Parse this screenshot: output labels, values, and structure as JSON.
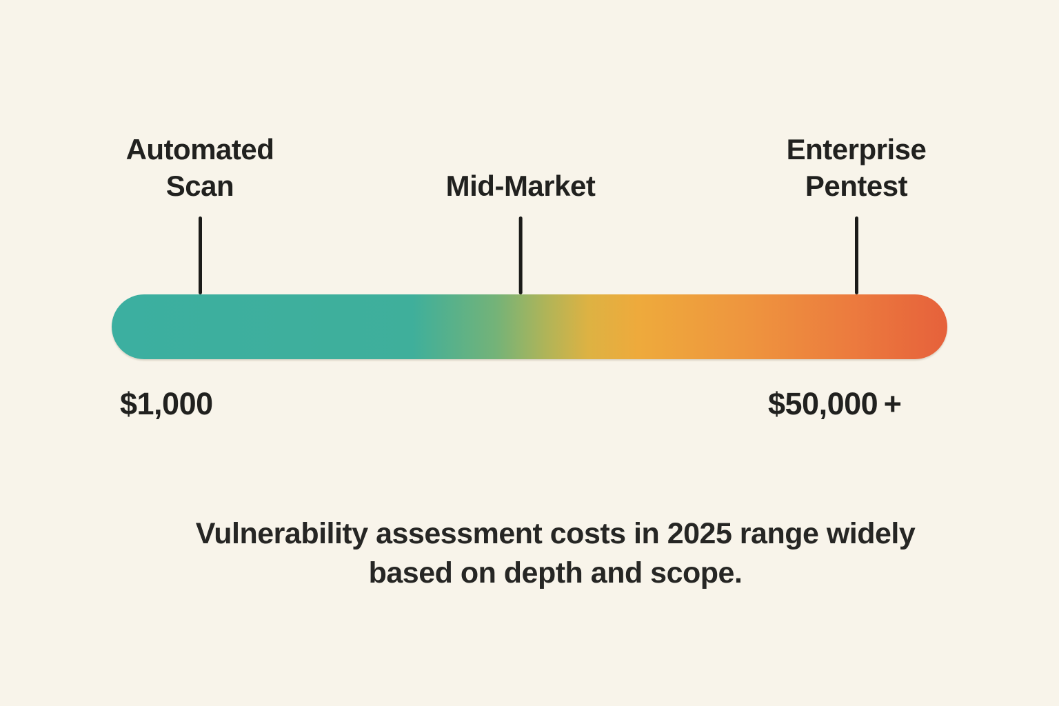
{
  "page": {
    "background": "#F8F4EA",
    "text_color": "#21211F",
    "tick_color": "#1B1B19"
  },
  "chart_data": {
    "type": "bar",
    "subtype": "gradient-cost-scale",
    "orientation": "horizontal",
    "title": "",
    "caption": "Vulnerability assessment costs in 2025 range widely based on depth and scope.",
    "caption_lines": [
      "Vulnerability assessment costs in 2025 range widely",
      "based on depth and scope."
    ],
    "min_label": "$1,000",
    "max_label": "$50,000 +",
    "min_value": 1000,
    "max_value": 50000,
    "max_open_ended": true,
    "legend": "none",
    "grid": false,
    "markers": [
      {
        "label": "Automated Scan",
        "position_pct": 10.6,
        "value_hint": 1000
      },
      {
        "label": "Mid-Market",
        "position_pct": 48.9
      },
      {
        "label": "Enterprise Pentest",
        "position_pct": 89.2,
        "value_hint": 50000
      }
    ],
    "gradient_stops": [
      {
        "pct": 0,
        "color": "#3CAFA0"
      },
      {
        "pct": 36,
        "color": "#3FAF9B"
      },
      {
        "pct": 46,
        "color": "#74B378"
      },
      {
        "pct": 52,
        "color": "#B0B458"
      },
      {
        "pct": 57,
        "color": "#DDB243"
      },
      {
        "pct": 63,
        "color": "#EEAA3C"
      },
      {
        "pct": 76,
        "color": "#EE953E"
      },
      {
        "pct": 88,
        "color": "#EC7C3E"
      },
      {
        "pct": 100,
        "color": "#E6613B"
      }
    ]
  }
}
